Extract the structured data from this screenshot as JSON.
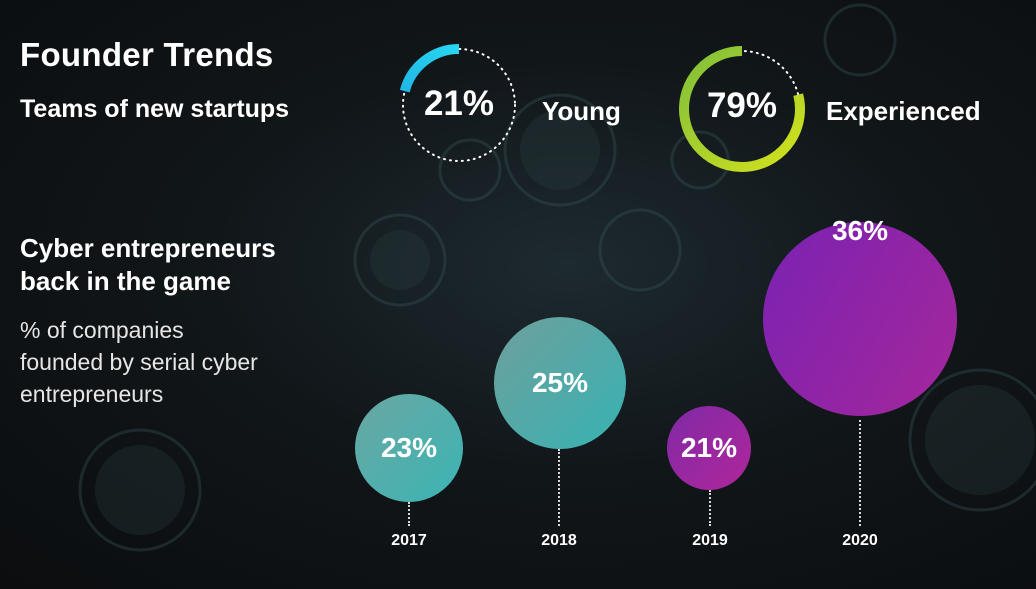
{
  "title": "Founder Trends",
  "subtitle": "Teams of new startups",
  "teams": [
    {
      "value": "21%",
      "fraction": 0.21,
      "label": "Young"
    },
    {
      "value": "79%",
      "fraction": 0.79,
      "label": "Experienced"
    }
  ],
  "section": {
    "heading_line1": "Cyber entrepreneurs",
    "heading_line2": "back in the game",
    "desc_line1": "% of companies",
    "desc_line2": "founded by serial cyber",
    "desc_line3": "entrepreneurs"
  },
  "bubbles": [
    {
      "year": "2017",
      "value": "23%"
    },
    {
      "year": "2018",
      "value": "25%"
    },
    {
      "year": "2019",
      "value": "21%"
    },
    {
      "year": "2020",
      "value": "36%"
    }
  ],
  "colors": {
    "teal": "#4db3b0",
    "purple": "#8a2aa8",
    "cyan_ring": "#1ec8e8",
    "green_ring": "#9ccf2a"
  }
}
